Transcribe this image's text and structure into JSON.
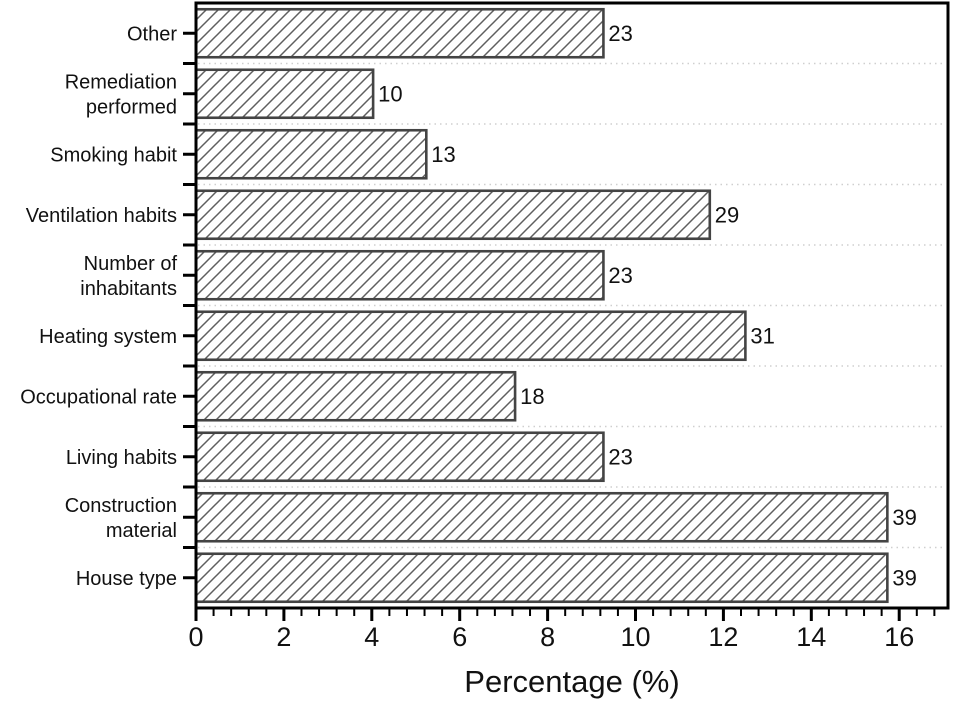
{
  "chart_data": {
    "type": "bar",
    "orientation": "horizontal",
    "title": "",
    "xlabel": "Percentage (%)",
    "ylabel": "",
    "categories": [
      "Other",
      "Remediation performed",
      "Smoking habit",
      "Ventilation habits",
      "Number of inhabitants",
      "Heating system",
      "Occupational rate",
      "Living habits",
      "Construction material",
      "House type"
    ],
    "category_label_lines": [
      [
        "Other"
      ],
      [
        "Remediation",
        "performed"
      ],
      [
        "Smoking habit"
      ],
      [
        "Ventilation habits"
      ],
      [
        "Number of",
        "inhabitants"
      ],
      [
        "Heating system"
      ],
      [
        "Occupational rate"
      ],
      [
        "Living habits"
      ],
      [
        "Construction",
        "material"
      ],
      [
        "House type"
      ]
    ],
    "values_percent": [
      9.27,
      4.03,
      5.24,
      11.69,
      9.27,
      12.5,
      7.26,
      9.27,
      15.73,
      15.73
    ],
    "bar_end_labels": [
      "23",
      "10",
      "13",
      "29",
      "23",
      "31",
      "18",
      "23",
      "39",
      "39"
    ],
    "x_ticks": [
      0,
      2,
      4,
      6,
      8,
      10,
      12,
      14,
      16
    ],
    "x_minor_step": 0.4,
    "xlim": [
      0,
      17.11
    ],
    "grid": "dotted horizontal lines at category boundaries",
    "legend": "none",
    "bar_style": "white fill with diagonal / hatch pattern",
    "colors": {
      "background": "#ffffff",
      "axis": "#000000",
      "text": "#111111",
      "bar_fill": "#ffffff",
      "bar_border": "#444444",
      "hatch_line": "#5f5f5f",
      "gridline": "#cfcfcf"
    }
  }
}
